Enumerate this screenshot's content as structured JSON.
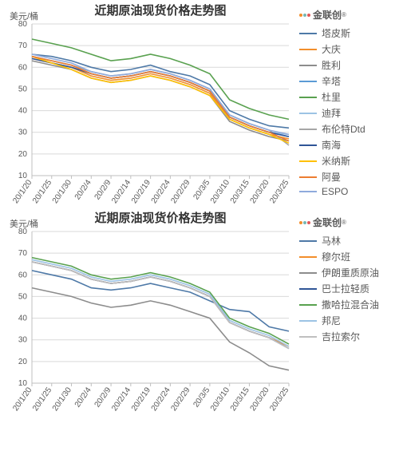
{
  "logo_text": "金联创",
  "logo_colors": [
    "#f28e2b",
    "#76b7b2",
    "#e15759"
  ],
  "charts": [
    {
      "title": "近期原油现货价格走势图",
      "ylabel": "美元/桶",
      "ylim": [
        10,
        80
      ],
      "ytick_step": 10,
      "background_color": "#ffffff",
      "grid_color": "#d9d9d9",
      "axis_color": "#bfbfbf",
      "title_fontsize": 15,
      "label_fontsize": 11,
      "tick_fontsize": 10,
      "x_labels": [
        "20/1/20",
        "20/1/25",
        "20/1/30",
        "20/2/4",
        "20/2/9",
        "20/2/14",
        "20/2/19",
        "20/2/24",
        "20/2/29",
        "20/3/5",
        "20/3/10",
        "20/3/15",
        "20/3/20",
        "20/3/25"
      ],
      "series": [
        {
          "name": "塔皮斯",
          "color": "#4e79a7",
          "values": [
            66,
            65,
            63,
            60,
            58,
            59,
            61,
            58,
            56,
            52,
            40,
            36,
            33,
            32
          ]
        },
        {
          "name": "大庆",
          "color": "#f28e2b",
          "values": [
            64,
            62,
            60,
            56,
            54,
            55,
            57,
            55,
            52,
            48,
            36,
            32,
            29,
            27
          ]
        },
        {
          "name": "胜利",
          "color": "#8c8c8c",
          "values": [
            63,
            61,
            59,
            55,
            53,
            54,
            56,
            54,
            51,
            47,
            35,
            31,
            28,
            26
          ]
        },
        {
          "name": "辛塔",
          "color": "#5b9bd5",
          "values": [
            65,
            63,
            61,
            57,
            55,
            56,
            58,
            56,
            53,
            49,
            37,
            33,
            30,
            28
          ]
        },
        {
          "name": "杜里",
          "color": "#59a14f",
          "values": [
            73,
            71,
            69,
            66,
            63,
            64,
            66,
            64,
            61,
            57,
            45,
            41,
            38,
            36
          ]
        },
        {
          "name": "迪拜",
          "color": "#9cc3e4",
          "values": [
            65,
            63,
            61,
            57,
            55,
            56,
            58,
            56,
            53,
            49,
            37,
            33,
            30,
            29
          ]
        },
        {
          "name": "布伦特Dtd",
          "color": "#a6a6a6",
          "values": [
            65,
            63,
            61,
            58,
            56,
            57,
            59,
            57,
            54,
            50,
            38,
            34,
            31,
            24
          ]
        },
        {
          "name": "南海",
          "color": "#2f5597",
          "values": [
            64,
            62,
            60,
            57,
            55,
            56,
            58,
            56,
            53,
            49,
            37,
            33,
            30,
            28
          ]
        },
        {
          "name": "米纳斯",
          "color": "#ffc000",
          "values": [
            65,
            62,
            59,
            55,
            53,
            54,
            56,
            54,
            51,
            47,
            36,
            32,
            29,
            25
          ]
        },
        {
          "name": "阿曼",
          "color": "#ed7d31",
          "values": [
            65,
            63,
            61,
            57,
            55,
            56,
            58,
            56,
            53,
            49,
            37,
            33,
            30,
            26
          ]
        },
        {
          "name": "ESPO",
          "color": "#8faadc",
          "values": [
            66,
            64,
            62,
            58,
            56,
            57,
            59,
            57,
            54,
            50,
            38,
            34,
            31,
            29
          ]
        }
      ]
    },
    {
      "title": "近期原油现货价格走势图",
      "ylabel": "美元/桶",
      "ylim": [
        10,
        80
      ],
      "ytick_step": 10,
      "background_color": "#ffffff",
      "grid_color": "#d9d9d9",
      "axis_color": "#bfbfbf",
      "title_fontsize": 15,
      "label_fontsize": 11,
      "tick_fontsize": 10,
      "x_labels": [
        "20/1/20",
        "20/1/25",
        "20/1/30",
        "20/2/4",
        "20/2/9",
        "20/2/14",
        "20/2/19",
        "20/2/24",
        "20/2/29",
        "20/3/5",
        "20/3/10",
        "20/3/15",
        "20/3/20",
        "20/3/25"
      ],
      "series": [
        {
          "name": "马林",
          "color": "#4e79a7",
          "values": [
            62,
            60,
            58,
            54,
            53,
            54,
            56,
            54,
            52,
            48,
            44,
            43,
            36,
            34
          ]
        },
        {
          "name": "穆尔班",
          "color": "#f28e2b",
          "values": [
            66,
            64,
            62,
            58,
            56,
            57,
            59,
            57,
            54,
            50,
            38,
            34,
            31,
            27
          ]
        },
        {
          "name": "伊朗重质原油",
          "color": "#8c8c8c",
          "values": [
            54,
            52,
            50,
            47,
            45,
            46,
            48,
            46,
            43,
            40,
            29,
            24,
            18,
            16
          ]
        },
        {
          "name": "巴士拉轻质",
          "color": "#2f5597",
          "values": [
            66,
            64,
            62,
            58,
            56,
            57,
            59,
            57,
            54,
            50,
            38,
            34,
            31,
            26
          ]
        },
        {
          "name": "撒哈拉混合油",
          "color": "#59a14f",
          "values": [
            68,
            66,
            64,
            60,
            58,
            59,
            61,
            59,
            56,
            52,
            40,
            36,
            33,
            28
          ]
        },
        {
          "name": "邦尼",
          "color": "#9cc3e4",
          "values": [
            67,
            65,
            63,
            59,
            57,
            58,
            60,
            58,
            55,
            51,
            39,
            35,
            32,
            27
          ]
        },
        {
          "name": "吉拉索尔",
          "color": "#bfbfbf",
          "values": [
            66,
            64,
            62,
            58,
            56,
            57,
            59,
            57,
            54,
            50,
            38,
            34,
            31,
            26
          ]
        }
      ]
    }
  ]
}
